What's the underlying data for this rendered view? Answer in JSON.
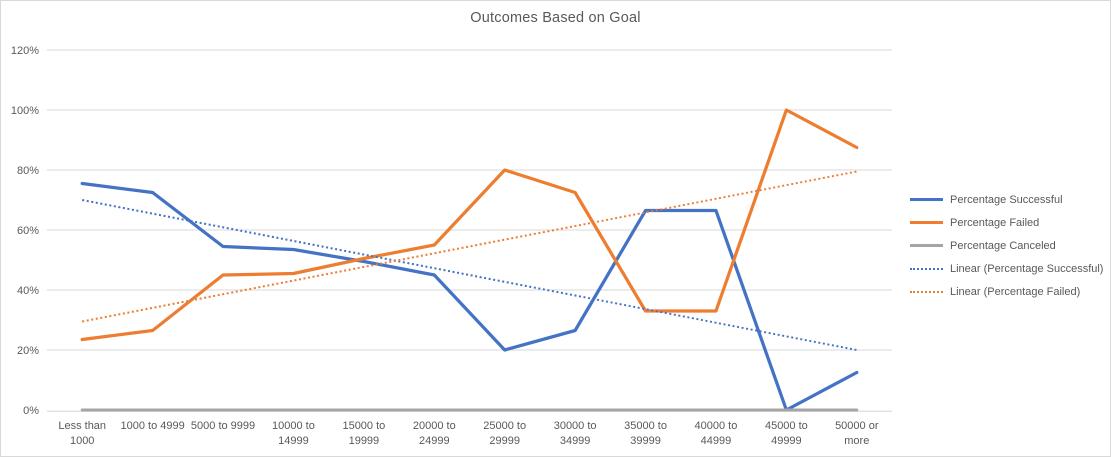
{
  "chart_data": {
    "type": "line",
    "title": "Outcomes Based on Goal",
    "xlabel": "",
    "ylabel": "",
    "ylim": [
      0,
      120
    ],
    "grid": "horizontal",
    "legend_position": "right",
    "y_ticks": [
      {
        "value": 0,
        "label": "0%"
      },
      {
        "value": 20,
        "label": "20%"
      },
      {
        "value": 40,
        "label": "40%"
      },
      {
        "value": 60,
        "label": "60%"
      },
      {
        "value": 80,
        "label": "80%"
      },
      {
        "value": 100,
        "label": "100%"
      },
      {
        "value": 120,
        "label": "120%"
      }
    ],
    "categories": [
      [
        "Less than",
        "1000"
      ],
      [
        "1000 to 4999"
      ],
      [
        "5000 to 9999"
      ],
      [
        "10000 to",
        "14999"
      ],
      [
        "15000 to",
        "19999"
      ],
      [
        "20000 to",
        "24999"
      ],
      [
        "25000 to",
        "29999"
      ],
      [
        "30000 to",
        "34999"
      ],
      [
        "35000 to",
        "39999"
      ],
      [
        "40000 to",
        "44999"
      ],
      [
        "45000 to",
        "49999"
      ],
      [
        "50000 or",
        "more"
      ]
    ],
    "series": [
      {
        "name": "Percentage Successful",
        "color": "#4472C4",
        "style": "solid",
        "values": [
          75.5,
          72.5,
          54.5,
          53.5,
          49.5,
          45,
          20,
          26.5,
          66.5,
          66.5,
          0,
          12.5
        ]
      },
      {
        "name": "Percentage Failed",
        "color": "#ED7D31",
        "style": "solid",
        "values": [
          23.5,
          26.5,
          45,
          45.5,
          50.5,
          55,
          80,
          72.5,
          33,
          33,
          100,
          87.5
        ]
      },
      {
        "name": "Percentage Canceled",
        "color": "#A5A5A5",
        "style": "solid",
        "values": [
          0,
          0,
          0,
          0,
          0,
          0,
          0,
          0,
          0,
          0,
          0,
          0
        ]
      }
    ],
    "trendlines": [
      {
        "name": "Linear (Percentage Successful)",
        "color": "#4472C4",
        "style": "dotted",
        "start": 70,
        "end": 20
      },
      {
        "name": "Linear (Percentage Failed)",
        "color": "#ED7D31",
        "style": "dotted",
        "start": 29.5,
        "end": 79.5
      }
    ],
    "colors": {
      "grid": "#D9D9D9",
      "axis_line": "#D9D9D9",
      "text": "#595959",
      "border": "#D9D9D9",
      "background": "#FFFFFF"
    }
  }
}
